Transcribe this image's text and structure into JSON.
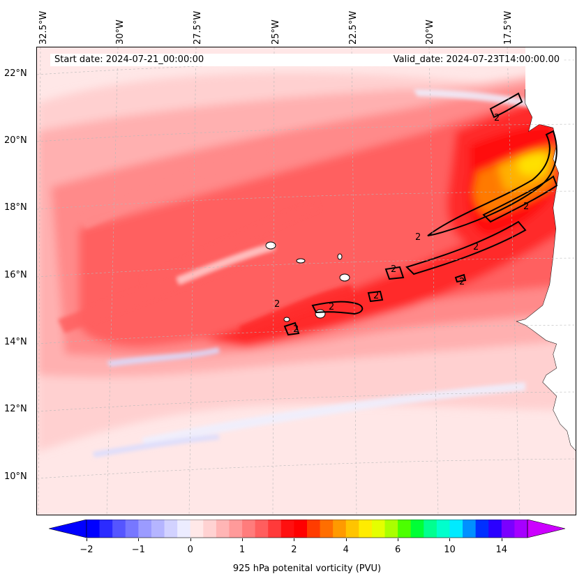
{
  "map": {
    "longitude_labels": [
      "32.5°W",
      "30°W",
      "27.5°W",
      "25°W",
      "22.5°W",
      "20°W",
      "17.5°W"
    ],
    "latitude_labels": [
      "22°N",
      "20°N",
      "18°N",
      "16°N",
      "14°N",
      "12°N",
      "10°N"
    ],
    "start_date": "Start date: 2024-07-21_00:00:00",
    "valid_date": "Valid_date: 2024-07-23T14:00:00.00",
    "contour_label": "2",
    "field_colors": {
      "background": "#ffe7e7",
      "light_pink": "#ffd0d0",
      "pink": "#ffb0b0",
      "salmon": "#ff8a8a",
      "red_light": "#ff6060",
      "red": "#ff2c2c",
      "red_deep": "#ff0a0a",
      "orange": "#ff7a00",
      "amber": "#ffb000",
      "yellow": "#ffe000",
      "blue_light": "#d8dcff",
      "blue_pale": "#eef0ff"
    }
  },
  "colorbar": {
    "label": "925 hPa potenital vorticity (PVU)",
    "ticks": [
      "−2",
      "−1",
      "0",
      "1",
      "2",
      "4",
      "6",
      "10",
      "14"
    ],
    "colors": [
      "#0000ff",
      "#2b2bff",
      "#5555ff",
      "#7777ff",
      "#9b9bff",
      "#b5b5ff",
      "#d2d2ff",
      "#ececff",
      "#ffe8e8",
      "#ffd2d2",
      "#ffb5b5",
      "#ff9a9a",
      "#ff7c7c",
      "#ff5e5e",
      "#ff3a3a",
      "#ff1010",
      "#ff0000",
      "#ff3c00",
      "#ff6e00",
      "#ff9a00",
      "#ffc400",
      "#ffec00",
      "#e4ff00",
      "#aaff00",
      "#4cff00",
      "#00ff36",
      "#00ff90",
      "#00ffcc",
      "#00eaff",
      "#0090ff",
      "#0030ff",
      "#2a00ff",
      "#7a00ff",
      "#a600ff"
    ],
    "extend_low": "#0000ff",
    "extend_high": "#cc00ff"
  }
}
